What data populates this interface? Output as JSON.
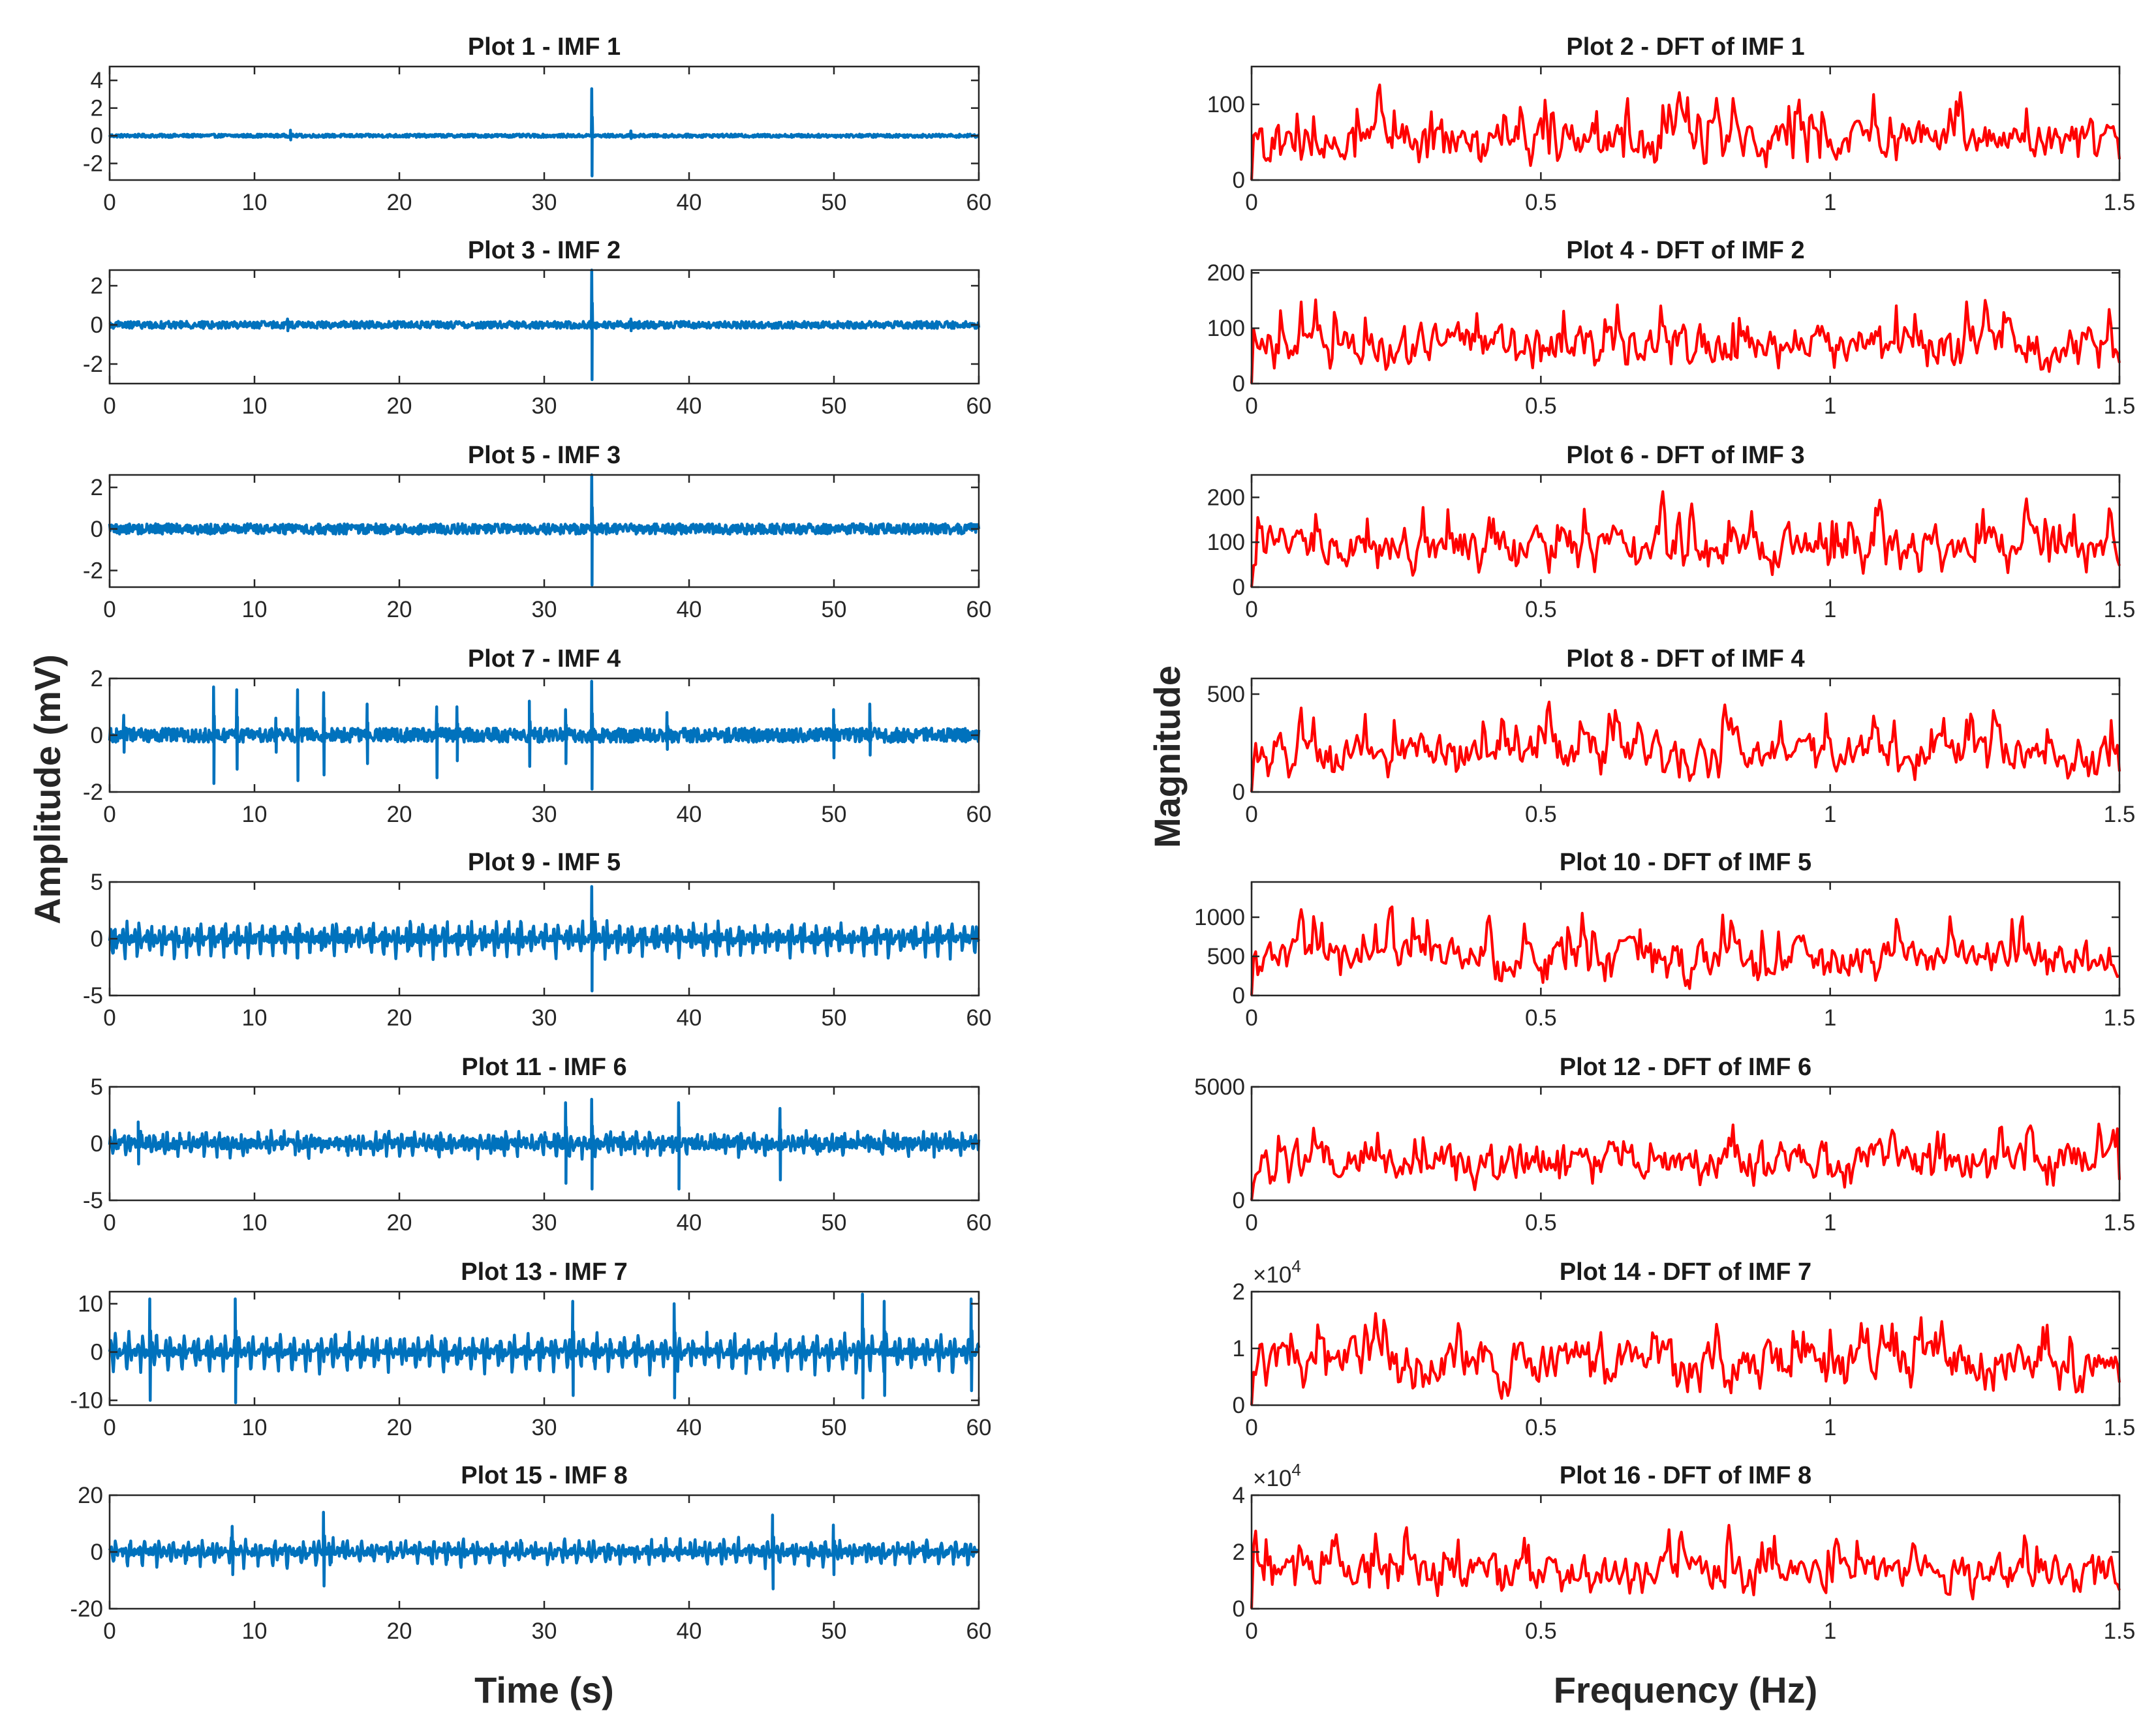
{
  "colors": {
    "imf": "#0072BD",
    "dft": "#FF0000",
    "axis": "#262626"
  },
  "labels": {
    "left_xlabel": "Time (s)",
    "left_ylabel": "Amplitude (mV)",
    "right_xlabel": "Frequency (Hz)",
    "right_ylabel": "Magnitude"
  },
  "chart_data": [
    {
      "type": "line",
      "series_name": "IMF 1",
      "title": "Plot 1 - IMF 1",
      "column": "left",
      "xlim": [
        0,
        60
      ],
      "xticks": [
        0,
        10,
        20,
        30,
        40,
        50,
        60
      ],
      "xtick_labels": [
        "0",
        "10",
        "20",
        "30",
        "40",
        "50",
        "60"
      ],
      "ylim": [
        -3.2,
        5
      ],
      "yticks": [
        -2,
        0,
        2,
        4
      ],
      "ytick_labels": [
        "-2",
        "0",
        "2",
        "4"
      ],
      "noise": 0.12,
      "baseline": 0.0,
      "spike_width": 0.4,
      "spikes": [
        {
          "x": 33.3,
          "lo": -2.9,
          "hi": 3.4
        },
        {
          "x": 12.5,
          "lo": -0.3,
          "hi": 0.4
        },
        {
          "x": 36.0,
          "lo": -0.2,
          "hi": 0.35
        }
      ]
    },
    {
      "type": "line",
      "series_name": "DFT of IMF 1",
      "title": "Plot 2 - DFT of IMF 1",
      "column": "right",
      "xlim": [
        0,
        1.5
      ],
      "xticks": [
        0,
        0.5,
        1,
        1.5
      ],
      "xtick_labels": [
        "0",
        "0.5",
        "1",
        "1.5"
      ],
      "ylim": [
        0,
        150
      ],
      "yticks": [
        0,
        100
      ],
      "ytick_labels": [
        "0",
        "100"
      ],
      "mean": 55,
      "range_max": 148
    },
    {
      "type": "line",
      "series_name": "IMF 2",
      "title": "Plot 3 - IMF 2",
      "column": "left",
      "xlim": [
        0,
        60
      ],
      "xticks": [
        0,
        10,
        20,
        30,
        40,
        50,
        60
      ],
      "xtick_labels": [
        "0",
        "10",
        "20",
        "30",
        "40",
        "50",
        "60"
      ],
      "ylim": [
        -3,
        2.8
      ],
      "yticks": [
        -2,
        0,
        2
      ],
      "ytick_labels": [
        "-2",
        "0",
        "2"
      ],
      "noise": 0.18,
      "baseline": 0.0,
      "spike_width": 0.4,
      "spikes": [
        {
          "x": 33.3,
          "lo": -2.8,
          "hi": 2.8
        },
        {
          "x": 12.3,
          "lo": -0.3,
          "hi": 0.3
        },
        {
          "x": 36.0,
          "lo": -0.3,
          "hi": 0.3
        }
      ]
    },
    {
      "type": "line",
      "series_name": "DFT of IMF 2",
      "title": "Plot 4 - DFT of IMF 2",
      "column": "right",
      "xlim": [
        0,
        1.5
      ],
      "xticks": [
        0,
        0.5,
        1,
        1.5
      ],
      "xtick_labels": [
        "0",
        "0.5",
        "1",
        "1.5"
      ],
      "ylim": [
        0,
        205
      ],
      "yticks": [
        0,
        100,
        200
      ],
      "ytick_labels": [
        "0",
        "100",
        "200"
      ],
      "mean": 75,
      "range_max": 200
    },
    {
      "type": "line",
      "series_name": "IMF 3",
      "title": "Plot 5 - IMF 3",
      "column": "left",
      "xlim": [
        0,
        60
      ],
      "xticks": [
        0,
        10,
        20,
        30,
        40,
        50,
        60
      ],
      "xtick_labels": [
        "0",
        "10",
        "20",
        "30",
        "40",
        "50",
        "60"
      ],
      "ylim": [
        -2.8,
        2.6
      ],
      "yticks": [
        -2,
        0,
        2
      ],
      "ytick_labels": [
        "-2",
        "0",
        "2"
      ],
      "noise": 0.25,
      "baseline": 0.0,
      "spike_width": 0.4,
      "spikes": [
        {
          "x": 33.3,
          "lo": -2.7,
          "hi": 2.6
        }
      ]
    },
    {
      "type": "line",
      "series_name": "DFT of IMF 3",
      "title": "Plot 6 - DFT of IMF 3",
      "column": "right",
      "xlim": [
        0,
        1.5
      ],
      "xticks": [
        0,
        0.5,
        1,
        1.5
      ],
      "xtick_labels": [
        "0",
        "0.5",
        "1",
        "1.5"
      ],
      "ylim": [
        0,
        250
      ],
      "yticks": [
        0,
        100,
        200
      ],
      "ytick_labels": [
        "0",
        "100",
        "200"
      ],
      "mean": 95,
      "range_max": 245
    },
    {
      "type": "line",
      "series_name": "IMF 4",
      "title": "Plot 7 - IMF 4",
      "column": "left",
      "xlim": [
        0,
        60
      ],
      "xticks": [
        0,
        10,
        20,
        30,
        40,
        50,
        60
      ],
      "xtick_labels": [
        "0",
        "10",
        "20",
        "30",
        "40",
        "50",
        "60"
      ],
      "ylim": [
        -2,
        2
      ],
      "yticks": [
        -2,
        0,
        2
      ],
      "ytick_labels": [
        "-2",
        "0",
        "2"
      ],
      "noise": 0.25,
      "baseline": 0.0,
      "spike_width": 0.5,
      "spikes": [
        {
          "x": 7.2,
          "lo": -1.7,
          "hi": 1.7
        },
        {
          "x": 8.8,
          "lo": -1.2,
          "hi": 1.6
        },
        {
          "x": 13.0,
          "lo": -1.6,
          "hi": 1.6
        },
        {
          "x": 14.8,
          "lo": -1.4,
          "hi": 1.5
        },
        {
          "x": 17.8,
          "lo": -1.0,
          "hi": 1.1
        },
        {
          "x": 22.6,
          "lo": -1.5,
          "hi": 1.0
        },
        {
          "x": 24.0,
          "lo": -0.9,
          "hi": 1.0
        },
        {
          "x": 29.0,
          "lo": -1.1,
          "hi": 1.2
        },
        {
          "x": 31.5,
          "lo": -1.0,
          "hi": 0.9
        },
        {
          "x": 33.3,
          "lo": -1.9,
          "hi": 1.9
        },
        {
          "x": 50.0,
          "lo": -0.8,
          "hi": 0.9
        },
        {
          "x": 52.5,
          "lo": -0.7,
          "hi": 1.1
        },
        {
          "x": 1.0,
          "lo": -0.6,
          "hi": 0.7
        },
        {
          "x": 11.5,
          "lo": -0.6,
          "hi": 0.6
        },
        {
          "x": 38.5,
          "lo": -0.5,
          "hi": 0.8
        }
      ]
    },
    {
      "type": "line",
      "series_name": "DFT of IMF 4",
      "title": "Plot 8 - DFT of IMF 4",
      "column": "right",
      "xlim": [
        0,
        1.5
      ],
      "xticks": [
        0,
        0.5,
        1,
        1.5
      ],
      "xtick_labels": [
        "0",
        "0.5",
        "1",
        "1.5"
      ],
      "ylim": [
        0,
        580
      ],
      "yticks": [
        0,
        500
      ],
      "ytick_labels": [
        "0",
        "500"
      ],
      "mean": 210,
      "range_max": 560
    },
    {
      "type": "line",
      "series_name": "IMF 5",
      "title": "Plot 9 - IMF 5",
      "column": "left",
      "xlim": [
        0,
        60
      ],
      "xticks": [
        0,
        10,
        20,
        30,
        40,
        50,
        60
      ],
      "xtick_labels": [
        "0",
        "10",
        "20",
        "30",
        "40",
        "50",
        "60"
      ],
      "ylim": [
        -5,
        5
      ],
      "yticks": [
        -5,
        0,
        5
      ],
      "ytick_labels": [
        "-5",
        "0",
        "5"
      ],
      "noise": 0.4,
      "baseline": 0.0,
      "spike_width": 0.4,
      "spikes": [
        {
          "x": 33.3,
          "lo": -4.6,
          "hi": 4.6
        }
      ],
      "periodic": {
        "period": 0.85,
        "amp": 1.8
      }
    },
    {
      "type": "line",
      "series_name": "DFT of IMF 5",
      "title": "Plot 10 - DFT of IMF 5",
      "column": "right",
      "xlim": [
        0,
        1.5
      ],
      "xticks": [
        0,
        0.5,
        1,
        1.5
      ],
      "xtick_labels": [
        "0",
        "0.5",
        "1",
        "1.5"
      ],
      "ylim": [
        0,
        1450
      ],
      "yticks": [
        0,
        500,
        1000
      ],
      "ytick_labels": [
        "0",
        "500",
        "1000"
      ],
      "mean": 500,
      "range_max": 1400
    },
    {
      "type": "line",
      "series_name": "IMF 6",
      "title": "Plot 11 - IMF 6",
      "column": "left",
      "xlim": [
        0,
        60
      ],
      "xticks": [
        0,
        10,
        20,
        30,
        40,
        50,
        60
      ],
      "xtick_labels": [
        "0",
        "10",
        "20",
        "30",
        "40",
        "50",
        "60"
      ],
      "ylim": [
        -5,
        5
      ],
      "yticks": [
        -5,
        0,
        5
      ],
      "ytick_labels": [
        "-5",
        "0",
        "5"
      ],
      "noise": 0.5,
      "baseline": 0.0,
      "spike_width": 0.5,
      "spikes": [
        {
          "x": 31.5,
          "lo": -3.5,
          "hi": 3.6
        },
        {
          "x": 33.3,
          "lo": -4.0,
          "hi": 3.9
        },
        {
          "x": 39.3,
          "lo": -4.0,
          "hi": 3.6
        },
        {
          "x": 46.3,
          "lo": -3.2,
          "hi": 3.1
        },
        {
          "x": 2.0,
          "lo": -1.8,
          "hi": 1.9
        }
      ],
      "periodic": {
        "period": 0.9,
        "amp": 1.1
      }
    },
    {
      "type": "line",
      "series_name": "DFT of IMF 6",
      "title": "Plot 12 - DFT of IMF 6",
      "column": "right",
      "xlim": [
        0,
        1.5
      ],
      "xticks": [
        0,
        0.5,
        1,
        1.5
      ],
      "xtick_labels": [
        "0",
        "0.5",
        "1",
        "1.5"
      ],
      "ylim": [
        0,
        5000
      ],
      "yticks": [
        0,
        5000
      ],
      "ytick_labels": [
        "0",
        "5000"
      ],
      "mean": 1800,
      "range_max": 4300
    },
    {
      "type": "line",
      "series_name": "IMF 7",
      "title": "Plot 13 - IMF 7",
      "column": "left",
      "xlim": [
        0,
        60
      ],
      "xticks": [
        0,
        10,
        20,
        30,
        40,
        50,
        60
      ],
      "xtick_labels": [
        "0",
        "10",
        "20",
        "30",
        "40",
        "50",
        "60"
      ],
      "ylim": [
        -11,
        12.5
      ],
      "yticks": [
        -10,
        0,
        10
      ],
      "ytick_labels": [
        "-10",
        "0",
        "10"
      ],
      "noise": 0.8,
      "baseline": 0.0,
      "spike_width": 0.6,
      "spikes": [
        {
          "x": 2.8,
          "lo": -10.0,
          "hi": 11.0
        },
        {
          "x": 8.7,
          "lo": -10.5,
          "hi": 11.0
        },
        {
          "x": 32.0,
          "lo": -9.0,
          "hi": 10.5
        },
        {
          "x": 39.0,
          "lo": -9.5,
          "hi": 10.0
        },
        {
          "x": 52.0,
          "lo": -9.5,
          "hi": 12.0
        },
        {
          "x": 53.5,
          "lo": -9.0,
          "hi": 10.5
        },
        {
          "x": 59.5,
          "lo": -8.0,
          "hi": 11.0
        }
      ],
      "periodic": {
        "period": 0.95,
        "amp": 4.5
      }
    },
    {
      "type": "line",
      "series_name": "DFT of IMF 7",
      "title": "Plot 14 - DFT of IMF 7",
      "column": "right",
      "xlim": [
        0,
        1.5
      ],
      "xticks": [
        0,
        0.5,
        1,
        1.5
      ],
      "xtick_labels": [
        "0",
        "0.5",
        "1",
        "1.5"
      ],
      "ylim": [
        0,
        20000
      ],
      "yticks": [
        0,
        10000,
        20000
      ],
      "ytick_labels": [
        "0",
        "1",
        "2"
      ],
      "exponent_base": "×10",
      "exponent_power": "4",
      "mean": 8000,
      "range_max": 20000
    },
    {
      "type": "line",
      "series_name": "IMF 8",
      "title": "Plot 15 - IMF 8",
      "column": "left",
      "xlim": [
        0,
        60
      ],
      "xticks": [
        0,
        10,
        20,
        30,
        40,
        50,
        60
      ],
      "xtick_labels": [
        "0",
        "10",
        "20",
        "30",
        "40",
        "50",
        "60"
      ],
      "ylim": [
        -20,
        20
      ],
      "yticks": [
        -20,
        0,
        20
      ],
      "ytick_labels": [
        "-20",
        "0",
        "20"
      ],
      "noise": 1.5,
      "baseline": 0.0,
      "spike_width": 0.8,
      "spikes": [
        {
          "x": 14.8,
          "lo": -12.0,
          "hi": 14.0
        },
        {
          "x": 45.8,
          "lo": -13.0,
          "hi": 13.0
        },
        {
          "x": 8.5,
          "lo": -8.0,
          "hi": 9.0
        },
        {
          "x": 50.0,
          "lo": -8.0,
          "hi": 9.5
        }
      ],
      "periodic": {
        "period": 1.0,
        "amp": 5.0
      }
    },
    {
      "type": "line",
      "series_name": "DFT of IMF 8",
      "title": "Plot 16 - DFT of IMF 8",
      "column": "right",
      "xlim": [
        0,
        1.5
      ],
      "xticks": [
        0,
        0.5,
        1,
        1.5
      ],
      "xtick_labels": [
        "0",
        "0.5",
        "1",
        "1.5"
      ],
      "ylim": [
        0,
        40000
      ],
      "yticks": [
        0,
        20000,
        40000
      ],
      "ytick_labels": [
        "0",
        "2",
        "4"
      ],
      "exponent_base": "×10",
      "exponent_power": "4",
      "mean": 13000,
      "range_max": 36000
    }
  ]
}
